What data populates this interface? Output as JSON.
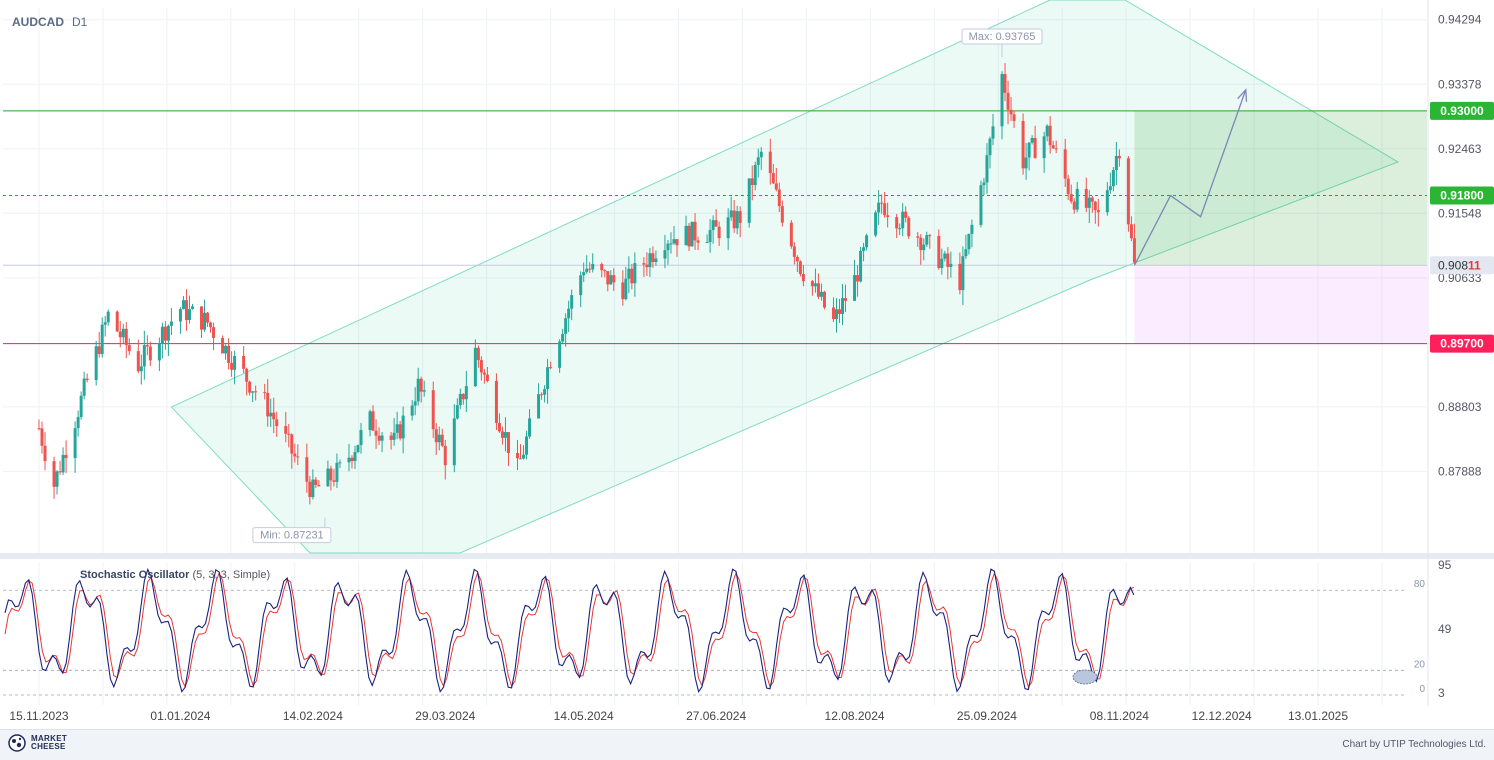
{
  "header": {
    "symbol": "AUDCAD",
    "timeframe": "D1"
  },
  "chart_data": {
    "type": "candlestick",
    "symbol": "AUDCAD",
    "timeframe": "D1",
    "price_axis": {
      "range": [
        0.8673,
        0.9446
      ],
      "ticks": [
        "0.94294",
        "0.93378",
        "0.92463",
        "0.91548",
        "0.90633",
        "0.88803",
        "0.87888"
      ]
    },
    "x_axis": {
      "labels": [
        "15.11.2023",
        "01.01.2024",
        "14.02.2024",
        "29.03.2024",
        "14.05.2024",
        "27.06.2024",
        "12.08.2024",
        "25.09.2024",
        "08.11.2024",
        "12.12.2024",
        "13.01.2025"
      ]
    },
    "price_path": [
      [
        "15.11.2023",
        0.885
      ],
      [
        "20.11.2023",
        0.877
      ],
      [
        "29.11.2023",
        0.889
      ],
      [
        "08.12.2023",
        0.901
      ],
      [
        "18.12.2023",
        0.894
      ],
      [
        "01.01.2024",
        0.902
      ],
      [
        "10.01.2024",
        0.9
      ],
      [
        "18.01.2024",
        0.895
      ],
      [
        "30.01.2024",
        0.888
      ],
      [
        "14.02.2024",
        0.876
      ],
      [
        "23.02.2024",
        0.879
      ],
      [
        "04.03.2024",
        0.886
      ],
      [
        "12.03.2024",
        0.883
      ],
      [
        "20.03.2024",
        0.891
      ],
      [
        "29.03.2024",
        0.881
      ],
      [
        "08.04.2024",
        0.896
      ],
      [
        "22.04.2024",
        0.879
      ],
      [
        "03.05.2024",
        0.895
      ],
      [
        "14.05.2024",
        0.908
      ],
      [
        "27.05.2024",
        0.905
      ],
      [
        "10.06.2024",
        0.912
      ],
      [
        "27.06.2024",
        0.913
      ],
      [
        "05.07.2024",
        0.915
      ],
      [
        "12.07.2024",
        0.924
      ],
      [
        "25.07.2024",
        0.908
      ],
      [
        "05.08.2024",
        0.9
      ],
      [
        "12.08.2024",
        0.906
      ],
      [
        "21.08.2024",
        0.917
      ],
      [
        "03.09.2024",
        0.912
      ],
      [
        "16.09.2024",
        0.906
      ],
      [
        "25.09.2024",
        0.923
      ],
      [
        "30.09.2024",
        0.935
      ],
      [
        "07.10.2024",
        0.923
      ],
      [
        "15.10.2024",
        0.927
      ],
      [
        "23.10.2024",
        0.918
      ],
      [
        "01.11.2024",
        0.915
      ],
      [
        "08.11.2024",
        0.925
      ],
      [
        "13.11.2024",
        0.908
      ]
    ],
    "max_label": "Max: 0.93765",
    "min_label": "Min: 0.87231",
    "max": {
      "date": "30.09.2024",
      "value": 0.93765
    },
    "min": {
      "date": "18.02.2024",
      "value": 0.87231
    },
    "levels": [
      {
        "value": 0.93,
        "label": "0.93000",
        "style": "solid",
        "color": "#2ca02c"
      },
      {
        "value": 0.918,
        "label": "0.91800",
        "style": "dashed",
        "color": "#2ca02c"
      },
      {
        "value": 0.897,
        "label": "0.89700",
        "style": "solid",
        "color": "#e91e63"
      }
    ],
    "current_price": {
      "value": 0.90811,
      "label_main": "0.908",
      "label_tail": "11"
    },
    "forecast_path": [
      [
        "13.11.2024",
        0.9081
      ],
      [
        "25.11.2024",
        0.918
      ],
      [
        "05.12.2024",
        0.915
      ],
      [
        "20.12.2024",
        0.933
      ]
    ],
    "colors": {
      "up": "#26a69a",
      "down": "#ef5350",
      "channel": "#2ecc9a"
    }
  },
  "stochastic": {
    "name": "Stochastic Oscillator",
    "params": "(5, 3, 3, Simple)",
    "axis_ticks": [
      "95",
      "49",
      "3"
    ],
    "level_ticks": [
      "80",
      "20",
      "0"
    ],
    "colors": {
      "k": "#1a237e",
      "d": "#e53935"
    }
  },
  "footer": {
    "brand_line1": "MARKET",
    "brand_line2": "CHEESE",
    "credit": "Chart by UTIP Technologies Ltd."
  }
}
